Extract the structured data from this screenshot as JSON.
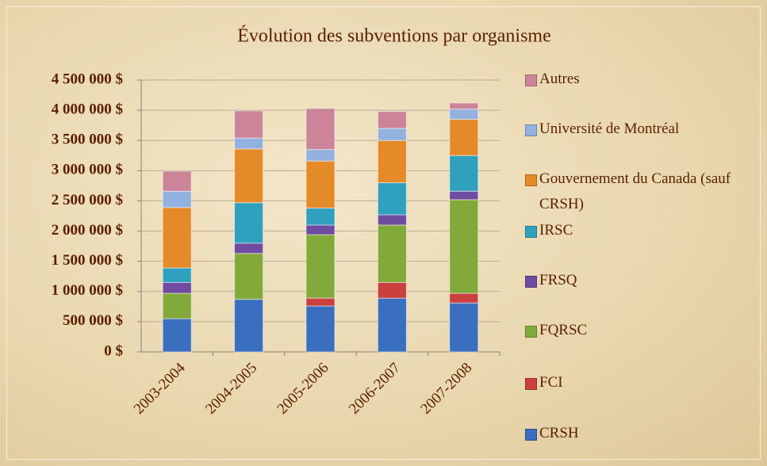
{
  "chart_data": {
    "type": "stacked_bar",
    "title": "Évolution des subventions par organisme",
    "categories": [
      "2003-2004",
      "2004-2005",
      "2005-2006",
      "2006-2007",
      "2007-2008"
    ],
    "series": [
      {
        "name": "CRSH",
        "color": "#3a6fc0",
        "values": [
          550000,
          870000,
          760000,
          890000,
          810000
        ]
      },
      {
        "name": "FCI",
        "color": "#c9403e",
        "values": [
          0,
          0,
          130000,
          260000,
          160000
        ]
      },
      {
        "name": "FQRSC",
        "color": "#82aa3a",
        "values": [
          420000,
          760000,
          1050000,
          950000,
          1550000
        ]
      },
      {
        "name": "FRSQ",
        "color": "#6f4c9f",
        "values": [
          180000,
          170000,
          160000,
          170000,
          140000
        ]
      },
      {
        "name": "IRSC",
        "color": "#2fa0be",
        "values": [
          240000,
          670000,
          280000,
          530000,
          590000
        ]
      },
      {
        "name": "Gouvernement du Canada (sauf CRSH)",
        "color": "#e48a28",
        "values": [
          1000000,
          890000,
          780000,
          700000,
          600000
        ]
      },
      {
        "name": "Université de Montréal",
        "color": "#92b1de",
        "values": [
          270000,
          180000,
          190000,
          200000,
          170000
        ]
      },
      {
        "name": "Autres",
        "color": "#cc8499",
        "values": [
          330000,
          450000,
          680000,
          280000,
          100000
        ]
      }
    ],
    "ylim": [
      0,
      4500000
    ],
    "yticks": [
      {
        "value": 0,
        "label": "0 $"
      },
      {
        "value": 500000,
        "label": "500 000 $"
      },
      {
        "value": 1000000,
        "label": "1 000 000 $"
      },
      {
        "value": 1500000,
        "label": "1 500 000 $"
      },
      {
        "value": 2000000,
        "label": "2 000 000 $"
      },
      {
        "value": 2500000,
        "label": "2 500 000 $"
      },
      {
        "value": 3000000,
        "label": "3 000 000 $"
      },
      {
        "value": 3500000,
        "label": "3 500 000 $"
      },
      {
        "value": 4000000,
        "label": "4 000 000 $"
      },
      {
        "value": 4500000,
        "label": "4 500 000 $"
      }
    ],
    "grid": true,
    "legend": "right"
  }
}
